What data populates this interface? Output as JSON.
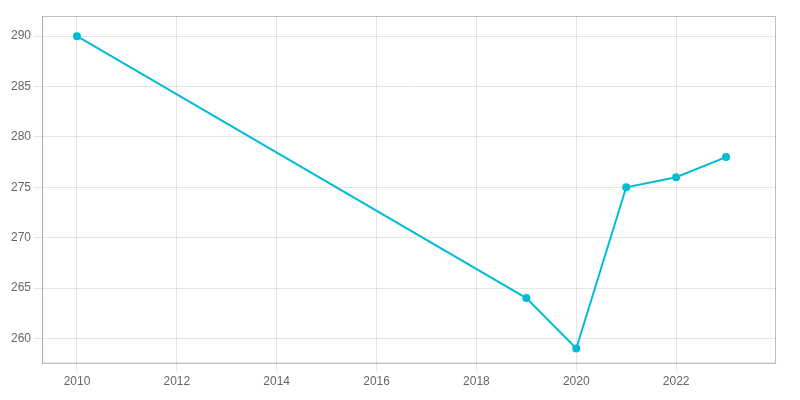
{
  "chart_data": {
    "type": "line",
    "x": [
      2010,
      2019,
      2020,
      2021,
      2022,
      2023
    ],
    "values": [
      290,
      264,
      259,
      275,
      276,
      278
    ],
    "color": "#00BCD4",
    "marker": "circle",
    "xlim": [
      2009.3,
      2024.0
    ],
    "ylim": [
      257.5,
      292
    ],
    "xticks": [
      2010,
      2012,
      2014,
      2016,
      2018,
      2020,
      2022
    ],
    "yticks": [
      260,
      265,
      270,
      275,
      280,
      285,
      290
    ],
    "grid": true
  }
}
